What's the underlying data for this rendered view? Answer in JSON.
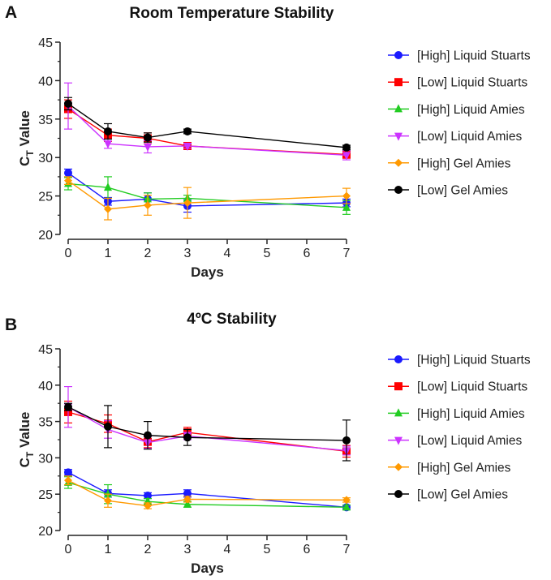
{
  "figure": {
    "panels": [
      "A",
      "B"
    ]
  },
  "colors": {
    "high_liquid_stuarts": "#1a1aff",
    "low_liquid_stuarts": "#ff0000",
    "high_liquid_amies": "#22cc22",
    "low_liquid_amies": "#cc33ff",
    "high_gel_amies": "#ff9900",
    "low_gel_amies": "#000000"
  },
  "chart_data": [
    {
      "panel": "A",
      "type": "line",
      "title": "Room Temperature Stability",
      "xlabel": "Days",
      "ylabel_main": "C",
      "ylabel_sub": "T",
      "ylabel_rest": " Value",
      "xlim": [
        0,
        7
      ],
      "ylim": [
        20,
        45
      ],
      "xticks": [
        0,
        1,
        2,
        3,
        4,
        5,
        6,
        7
      ],
      "yticks": [
        20,
        25,
        30,
        35,
        40,
        45
      ],
      "x": [
        0,
        1,
        2,
        3,
        7
      ],
      "series": [
        {
          "name": "[High] Liquid Stuarts",
          "color": "#1a1aff",
          "marker": "circle",
          "values": [
            28.0,
            24.3,
            24.6,
            23.7,
            24.1
          ],
          "err": [
            0.5,
            0.5,
            0.8,
            0.8,
            0.5
          ]
        },
        {
          "name": "[Low] Liquid Stuarts",
          "color": "#ff0000",
          "marker": "square",
          "values": [
            36.3,
            32.9,
            32.5,
            31.5,
            30.4
          ],
          "err": [
            1.2,
            0.8,
            0.7,
            0.3,
            0.5
          ]
        },
        {
          "name": "[High] Liquid Amies",
          "color": "#22cc22",
          "marker": "triangle",
          "values": [
            26.6,
            26.1,
            24.6,
            24.7,
            23.5
          ],
          "err": [
            0.8,
            1.4,
            0.8,
            0.4,
            0.9
          ]
        },
        {
          "name": "[Low] Liquid Amies",
          "color": "#cc33ff",
          "marker": "tri-down",
          "values": [
            36.7,
            31.8,
            31.4,
            31.5,
            30.3
          ],
          "err": [
            3.0,
            0.6,
            0.8,
            0.3,
            0.6
          ]
        },
        {
          "name": "[High] Gel Amies",
          "color": "#ff9900",
          "marker": "diamond",
          "values": [
            27.0,
            23.3,
            23.8,
            24.1,
            25.0
          ],
          "err": [
            0.5,
            1.4,
            1.3,
            2.0,
            1.0
          ]
        },
        {
          "name": "[Low] Gel Amies",
          "color": "#000000",
          "marker": "circle",
          "values": [
            37.0,
            33.4,
            32.6,
            33.4,
            31.3
          ],
          "err": [
            0.8,
            1.0,
            0.6,
            0.3,
            0.3
          ]
        }
      ]
    },
    {
      "panel": "B",
      "type": "line",
      "title": "4ºC Stability",
      "xlabel": "Days",
      "ylabel_main": "C",
      "ylabel_sub": "T",
      "ylabel_rest": " Value",
      "xlim": [
        0,
        7
      ],
      "ylim": [
        20,
        45
      ],
      "xticks": [
        0,
        1,
        2,
        3,
        4,
        5,
        6,
        7
      ],
      "yticks": [
        20,
        25,
        30,
        35,
        40,
        45
      ],
      "x": [
        0,
        1,
        2,
        3,
        7
      ],
      "series": [
        {
          "name": "[High] Liquid Stuarts",
          "color": "#1a1aff",
          "marker": "circle",
          "values": [
            28.0,
            25.1,
            24.8,
            25.1,
            23.2
          ],
          "err": [
            0.4,
            0.5,
            0.4,
            0.5,
            0.3
          ]
        },
        {
          "name": "[Low] Liquid Stuarts",
          "color": "#ff0000",
          "marker": "square",
          "values": [
            36.3,
            34.7,
            32.2,
            33.5,
            30.9
          ],
          "err": [
            1.5,
            1.2,
            0.8,
            0.7,
            0.8
          ]
        },
        {
          "name": "[High] Liquid Amies",
          "color": "#22cc22",
          "marker": "triangle",
          "values": [
            26.6,
            25.0,
            24.0,
            23.6,
            23.2
          ],
          "err": [
            0.8,
            1.3,
            0.4,
            0.4,
            0.3
          ]
        },
        {
          "name": "[Low] Liquid Amies",
          "color": "#cc33ff",
          "marker": "tri-down",
          "values": [
            37.0,
            33.9,
            32.1,
            33.0,
            31.0
          ],
          "err": [
            2.8,
            1.2,
            0.8,
            0.5,
            0.6
          ]
        },
        {
          "name": "[High] Gel Amies",
          "color": "#ff9900",
          "marker": "diamond",
          "values": [
            26.9,
            24.1,
            23.4,
            24.3,
            24.2
          ],
          "err": [
            0.6,
            0.9,
            0.4,
            0.4,
            0.3
          ]
        },
        {
          "name": "[Low] Gel Amies",
          "color": "#000000",
          "marker": "circle",
          "values": [
            37.0,
            34.3,
            33.1,
            32.8,
            32.4
          ],
          "err": [
            0.5,
            2.9,
            1.9,
            1.1,
            2.8
          ]
        }
      ]
    }
  ]
}
